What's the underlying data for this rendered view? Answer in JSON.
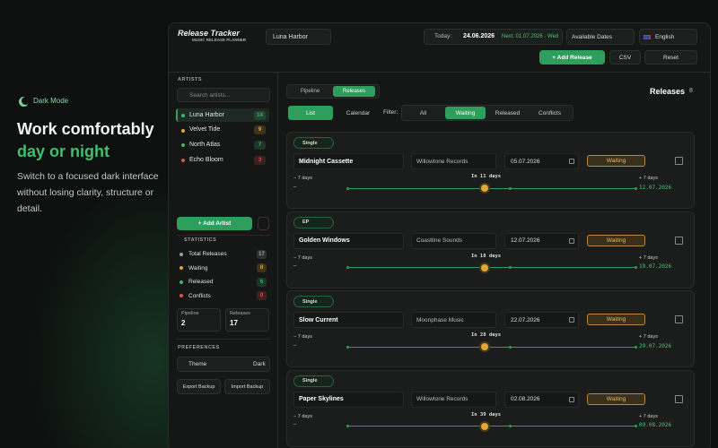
{
  "promo": {
    "badge": "Dark Mode",
    "headline": "Work comfortably",
    "highlight": "day or night",
    "description": "Switch to a focused dark interface without losing clarity, structure or detail."
  },
  "header": {
    "logo_title": "Release Tracker",
    "logo_subtitle": "MUSIC RELEASE PLANNER",
    "artist_select": "Luna Harbor",
    "today_label": "Today:",
    "today_date": "24.06.2026",
    "next": "Next: 01.07.2026 · Wed",
    "available_dates": "Available Dates",
    "language": "English",
    "add_release": "+ Add Release",
    "csv": "CSV",
    "reset": "Reset"
  },
  "sidebar": {
    "artists_heading": "ARTISTS",
    "search_placeholder": "Search artists...",
    "artists": [
      {
        "name": "Luna Harbor",
        "count": 14,
        "color": "#3fb56a"
      },
      {
        "name": "Velvet Tide",
        "count": 9,
        "color": "#e0a83c"
      },
      {
        "name": "North Atlas",
        "count": 7,
        "color": "#3fb56a"
      },
      {
        "name": "Echo Bloom",
        "count": 3,
        "color": "#e0524a"
      }
    ],
    "add_artist": "+ Add Artist",
    "statistics_heading": "STATISTICS",
    "stats": [
      {
        "label": "Total Releases",
        "value": 17,
        "color": "#9aa09c"
      },
      {
        "label": "Waiting",
        "value": 8,
        "color": "#e0a83c"
      },
      {
        "label": "Released",
        "value": 6,
        "color": "#3fb56a"
      },
      {
        "label": "Conflicts",
        "value": 0,
        "color": "#e0524a"
      }
    ],
    "summary": [
      {
        "label": "Pipeline",
        "value": 2
      },
      {
        "label": "Releases",
        "value": 17
      }
    ],
    "preferences_heading": "PREFERENCES",
    "theme_label": "Theme",
    "theme_value": "Dark",
    "export_backup": "Export Backup",
    "import_backup": "Import Backup"
  },
  "main": {
    "tabs": [
      "Pipeline",
      "Releases"
    ],
    "active_tab": "Releases",
    "section_title": "Releases",
    "section_count": 8,
    "views": [
      "List",
      "Calendar"
    ],
    "active_view": "List",
    "filter_label": "Filter:",
    "filters": [
      "All",
      "Waiting",
      "Released",
      "Conflicts"
    ],
    "active_filter": "Waiting",
    "releases": [
      {
        "type": "Single",
        "title": "Midnight Cassette",
        "label": "Willowtone Records",
        "date": "05.07.2026",
        "status": "Waiting",
        "window_start": "− 7 days",
        "window_start_date": "–",
        "countdown": "In 11 days",
        "window_end": "+ 7 days",
        "window_end_date": "12.07.2026"
      },
      {
        "type": "EP",
        "title": "Golden Windows",
        "label": "Coastline Sounds",
        "date": "12.07.2026",
        "status": "Waiting",
        "window_start": "− 7 days",
        "window_start_date": "–",
        "countdown": "In 18 days",
        "window_end": "+ 7 days",
        "window_end_date": "19.07.2026"
      },
      {
        "type": "Single",
        "title": "Slow Current",
        "label": "Moonphase Music",
        "date": "22.07.2026",
        "status": "Waiting",
        "window_start": "− 7 days",
        "window_start_date": "–",
        "countdown": "In 28 days",
        "window_end": "+ 7 days",
        "window_end_date": "29.07.2026"
      },
      {
        "type": "Single",
        "title": "Paper Skylines",
        "label": "Willowtone Records",
        "date": "02.08.2026",
        "status": "Waiting",
        "window_start": "− 7 days",
        "window_start_date": "–",
        "countdown": "In 39 days",
        "window_end": "+ 7 days",
        "window_end_date": "09.08.2026"
      }
    ]
  }
}
